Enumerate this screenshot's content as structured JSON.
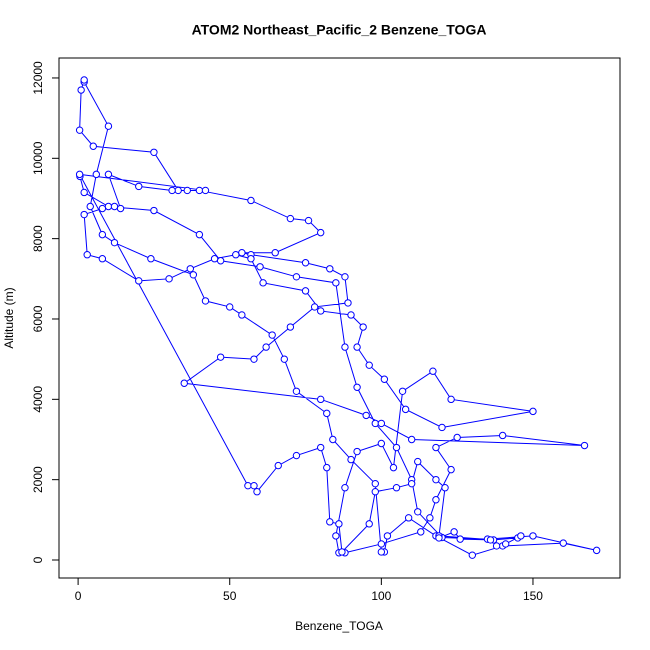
{
  "chart_data": {
    "type": "line",
    "title": "ATOM2 Northeast_Pacific_2 Benzene_TOGA",
    "x_label": "Benzene_TOGA",
    "y_label": "Altitude (m)",
    "color": "#0000ff",
    "xlim": [
      -6.3,
      178.7
    ],
    "ylim": [
      -448,
      12497
    ],
    "xticks": [
      0,
      50,
      100,
      150
    ],
    "yticks": [
      0,
      2000,
      4000,
      6000,
      8000,
      10000,
      12000
    ],
    "x": [
      0.6,
      2,
      10,
      25,
      40,
      47,
      60,
      72,
      85,
      88,
      92,
      98,
      105,
      110,
      112,
      120,
      135,
      150,
      171,
      160,
      140,
      130,
      118,
      109,
      102,
      101,
      100,
      98,
      90,
      84,
      82,
      72,
      68,
      64,
      54,
      50,
      42,
      38,
      24,
      12,
      8,
      4,
      6,
      10,
      2,
      2,
      1,
      0.5,
      5,
      25,
      33,
      40,
      57,
      70,
      76,
      80,
      65,
      54,
      57,
      75,
      83,
      88,
      89,
      78,
      70,
      62,
      58,
      47,
      35,
      80,
      95,
      100,
      110,
      167,
      140,
      125,
      118,
      123,
      118,
      116,
      113,
      100,
      88,
      86,
      85,
      88,
      92,
      100,
      104,
      107,
      117,
      123,
      150,
      120,
      108,
      101,
      96,
      92,
      94,
      90,
      80,
      75,
      61,
      57,
      52,
      45,
      37,
      30,
      20,
      8,
      3,
      2,
      8,
      12,
      14,
      10,
      20,
      31,
      36,
      42,
      0.5,
      56,
      58,
      59,
      66,
      72,
      80,
      82,
      83,
      86,
      87,
      96,
      98,
      105,
      110,
      112,
      118,
      121,
      119,
      137,
      145,
      146,
      141,
      138,
      136,
      126,
      124,
      119
    ],
    "values": [
      9550,
      9150,
      8800,
      8700,
      8100,
      7450,
      7300,
      7050,
      6900,
      5300,
      4300,
      3400,
      2800,
      2000,
      1200,
      560,
      520,
      600,
      240,
      420,
      350,
      120,
      600,
      1050,
      600,
      200,
      200,
      1900,
      2500,
      3000,
      3650,
      4200,
      5000,
      5600,
      6100,
      6300,
      6450,
      7100,
      7500,
      7900,
      8100,
      8800,
      9600,
      10800,
      11900,
      11950,
      11700,
      10700,
      10300,
      10150,
      9200,
      9200,
      8950,
      8500,
      8450,
      8150,
      7650,
      7650,
      7600,
      7400,
      7250,
      7050,
      6400,
      6300,
      5800,
      5300,
      5000,
      5050,
      4400,
      4000,
      3600,
      3400,
      3000,
      2850,
      3100,
      3050,
      2800,
      2250,
      1500,
      1050,
      700,
      400,
      180,
      180,
      600,
      1800,
      2700,
      2900,
      2300,
      4200,
      4700,
      4000,
      3700,
      3300,
      3750,
      4500,
      4850,
      5300,
      5800,
      6100,
      6200,
      6700,
      6900,
      7500,
      7600,
      7500,
      7250,
      7000,
      6950,
      7500,
      7600,
      8600,
      8750,
      8800,
      8750,
      9600,
      9300,
      9200,
      9200,
      9200,
      9600,
      1850,
      1850,
      1700,
      2350,
      2600,
      2800,
      2300,
      950,
      900,
      200,
      900,
      1700,
      1800,
      1900,
      2450,
      2000,
      1800,
      600,
      500,
      550,
      600,
      400,
      350,
      500,
      520,
      700,
      550
    ]
  }
}
